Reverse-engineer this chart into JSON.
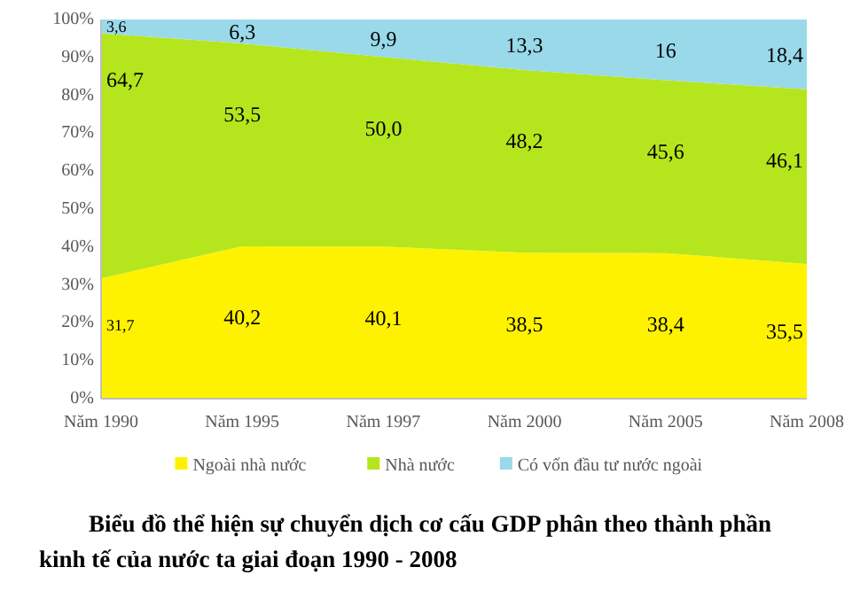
{
  "chart_data": {
    "type": "area",
    "stacked": true,
    "title": "Biểu đồ thể hiện sự chuyển dịch cơ cấu GDP phân theo thành phần kinh tế của nước ta giai đoạn 1990 - 2008",
    "categories": [
      "Năm 1990",
      "Năm 1995",
      "Năm 1997",
      "Năm 2000",
      "Năm 2005",
      "Năm 2008"
    ],
    "series": [
      {
        "name": "Ngoài nhà nước",
        "color": "#fff200",
        "values": [
          31.7,
          40.2,
          40.1,
          38.5,
          38.4,
          35.5
        ],
        "value_labels": [
          "31,7",
          "40,2",
          "40,1",
          "38,5",
          "38,4",
          "35,5"
        ]
      },
      {
        "name": "Nhà nước",
        "color": "#b5e61d",
        "values": [
          64.7,
          53.5,
          50.0,
          48.2,
          45.6,
          46.1
        ],
        "value_labels": [
          "64,7",
          "53,5",
          "50,0",
          "48,2",
          "45,6",
          "46,1"
        ]
      },
      {
        "name": "Có vốn đầu tư nước ngoài",
        "color": "#99d9ea",
        "values": [
          3.6,
          6.3,
          9.9,
          13.3,
          16,
          18.4
        ],
        "value_labels": [
          "3,6",
          "6,3",
          "9,9",
          "13,3",
          "16",
          "18,4"
        ]
      }
    ],
    "ylim": [
      0,
      100
    ],
    "yticks": [
      {
        "value": 0,
        "label": "0%"
      },
      {
        "value": 10,
        "label": "10%"
      },
      {
        "value": 20,
        "label": "20%"
      },
      {
        "value": 30,
        "label": "30%"
      },
      {
        "value": 40,
        "label": "40%"
      },
      {
        "value": 50,
        "label": "50%"
      },
      {
        "value": 60,
        "label": "60%"
      },
      {
        "value": 70,
        "label": "70%"
      },
      {
        "value": 80,
        "label": "80%"
      },
      {
        "value": 90,
        "label": "90%"
      },
      {
        "value": 100,
        "label": "100%"
      }
    ],
    "grid": false,
    "legend": "bottom"
  }
}
